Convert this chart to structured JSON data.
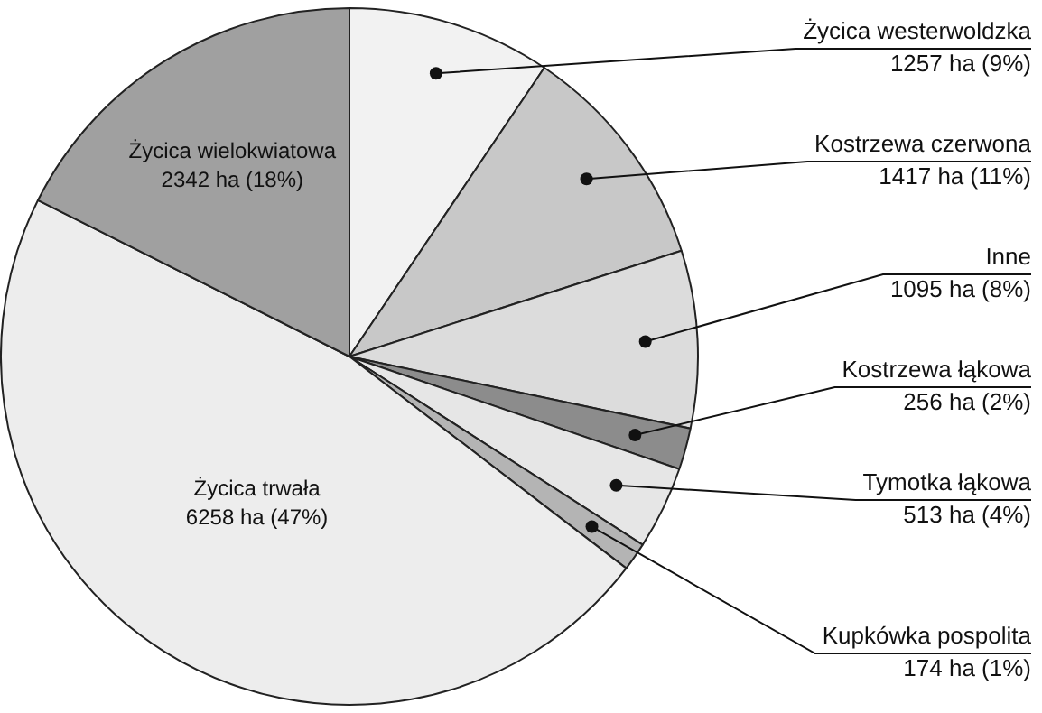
{
  "chart_data": {
    "type": "pie",
    "categories": [
      "Życica westerwoldzka",
      "Kostrzewa czerwona",
      "Inne",
      "Kostrzewa łąkowa",
      "Tymotka łąkowa",
      "Kupkówka pospolita",
      "Życica trwała",
      "Życica wielokwiatowa"
    ],
    "values": [
      1257,
      1417,
      1095,
      256,
      513,
      174,
      6258,
      2342
    ],
    "value_labels": [
      "1257 ha (9%)",
      "1417 ha (11%)",
      "1095 ha (8%)",
      "256 ha (2%)",
      "513 ha (4%)",
      "174 ha (1%)",
      "6258 ha (47%)",
      "2342 ha (18%)"
    ],
    "colors": [
      "#f2f2f2",
      "#c8c8c8",
      "#dcdcdc",
      "#8c8c8c",
      "#e6e6e6",
      "#b4b4b4",
      "#ededed",
      "#a0a0a0"
    ],
    "legend": false
  }
}
